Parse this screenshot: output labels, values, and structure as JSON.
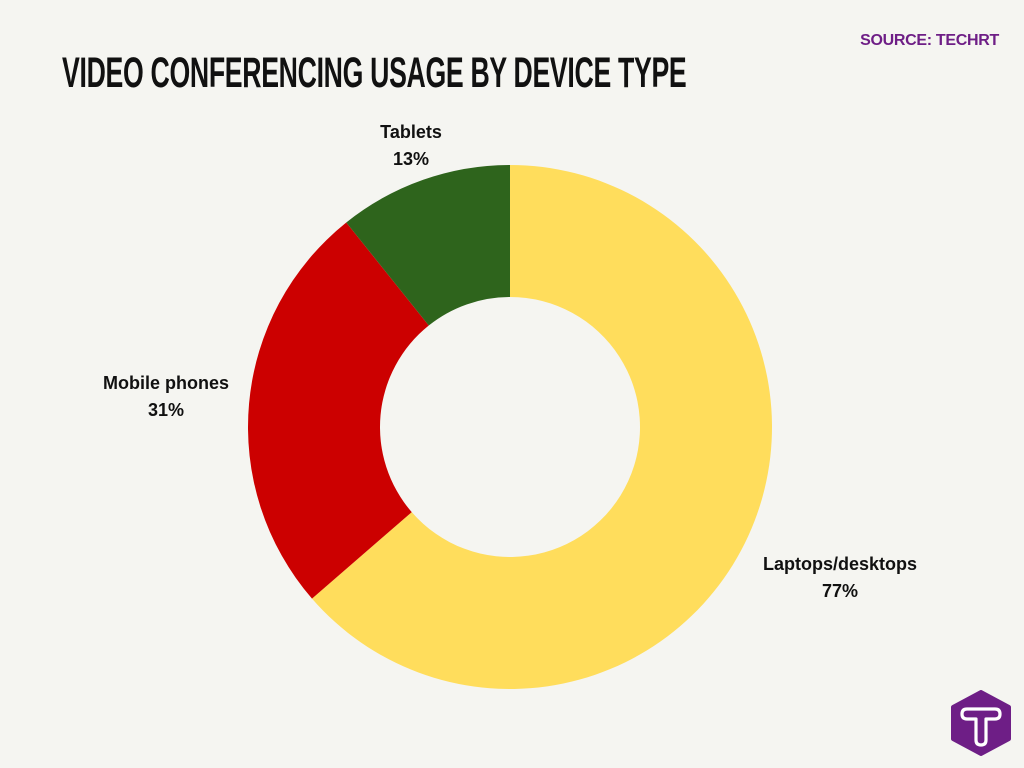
{
  "header": {
    "title": "VIDEO CONFERENCING USAGE BY DEVICE TYPE",
    "source": "SOURCE: TECHRT"
  },
  "labels": [
    {
      "name": "Laptops/desktops",
      "value": "77%"
    },
    {
      "name": "Mobile phones",
      "value": "31%"
    },
    {
      "name": "Tablets",
      "value": "13%"
    }
  ],
  "colors": {
    "laptops": "#FFDD5C",
    "mobile": "#CC0000",
    "tablets": "#2E641C",
    "background": "#F5F5F1",
    "brand": "#6E1E86"
  },
  "logo": {
    "icon": "techrt-hexagon-t-logo"
  },
  "chart_data": {
    "type": "pie",
    "subtype": "donut",
    "title": "VIDEO CONFERENCING USAGE BY DEVICE TYPE",
    "source": "SOURCE: TECHRT",
    "categories": [
      "Laptops/desktops",
      "Mobile phones",
      "Tablets"
    ],
    "values": [
      77,
      31,
      13
    ],
    "unit": "%",
    "colors": [
      "#FFDD5C",
      "#CC0000",
      "#2E641C"
    ],
    "start_angle": "12 o'clock, clockwise",
    "legend": "none (direct labels)"
  }
}
